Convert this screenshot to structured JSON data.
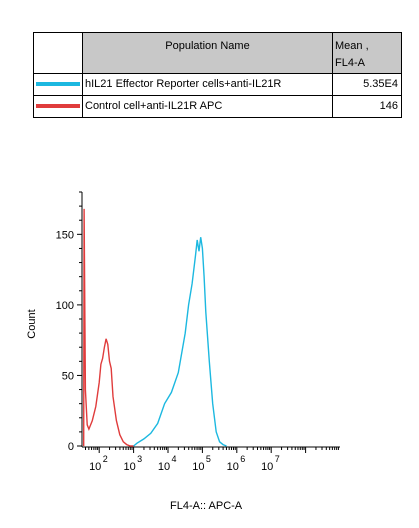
{
  "legend": {
    "header_name": "Population Name",
    "header_stat_line1": "Mean ,",
    "header_stat_line2": "FL4-A",
    "rows": [
      {
        "name": "hIL21 Effector Reporter cells+anti-IL21R",
        "value": "5.35E4",
        "color": "#1cb8e0"
      },
      {
        "name": "Control cell+anti-IL21R APC",
        "value": "146",
        "color": "#e03c3c"
      }
    ]
  },
  "chart_data": {
    "type": "line",
    "title": "",
    "xlabel": "FL4-A:: APC-A",
    "ylabel": "Count",
    "x_scale": "log",
    "xlim_exponent": [
      1.5,
      9
    ],
    "ylim": [
      0,
      180
    ],
    "y_ticks": [
      "0",
      "50",
      "100",
      "150"
    ],
    "x_ticks": [
      {
        "base": "10",
        "exp": "2",
        "value": 2
      },
      {
        "base": "10",
        "exp": "3",
        "value": 3
      },
      {
        "base": "10",
        "exp": "4",
        "value": 4
      },
      {
        "base": "10",
        "exp": "5",
        "value": 5
      },
      {
        "base": "10",
        "exp": "6",
        "value": 6
      },
      {
        "base": "10",
        "exp": "7",
        "value": 7
      }
    ],
    "series": [
      {
        "name": "Control cell+anti-IL21R APC",
        "color": "#e03c3c",
        "points": [
          [
            1.55,
            0
          ],
          [
            1.56,
            168
          ],
          [
            1.6,
            40
          ],
          [
            1.65,
            15
          ],
          [
            1.7,
            12
          ],
          [
            1.8,
            18
          ],
          [
            1.9,
            28
          ],
          [
            2.0,
            45
          ],
          [
            2.05,
            58
          ],
          [
            2.1,
            62
          ],
          [
            2.15,
            70
          ],
          [
            2.2,
            76
          ],
          [
            2.25,
            72
          ],
          [
            2.3,
            60
          ],
          [
            2.35,
            55
          ],
          [
            2.4,
            35
          ],
          [
            2.5,
            18
          ],
          [
            2.6,
            8
          ],
          [
            2.7,
            3
          ],
          [
            2.8,
            1
          ],
          [
            2.9,
            0
          ],
          [
            3.0,
            0
          ]
        ]
      },
      {
        "name": "hIL21 Effector Reporter cells+anti-IL21R",
        "color": "#1cb8e0",
        "points": [
          [
            3.0,
            0
          ],
          [
            3.1,
            2
          ],
          [
            3.3,
            5
          ],
          [
            3.5,
            9
          ],
          [
            3.7,
            16
          ],
          [
            3.9,
            30
          ],
          [
            4.1,
            38
          ],
          [
            4.3,
            52
          ],
          [
            4.5,
            80
          ],
          [
            4.6,
            100
          ],
          [
            4.7,
            115
          ],
          [
            4.8,
            135
          ],
          [
            4.85,
            146
          ],
          [
            4.9,
            138
          ],
          [
            4.95,
            148
          ],
          [
            5.0,
            140
          ],
          [
            5.05,
            120
          ],
          [
            5.1,
            95
          ],
          [
            5.2,
            60
          ],
          [
            5.3,
            30
          ],
          [
            5.4,
            10
          ],
          [
            5.5,
            3
          ],
          [
            5.6,
            1
          ],
          [
            5.7,
            0
          ]
        ]
      }
    ]
  }
}
